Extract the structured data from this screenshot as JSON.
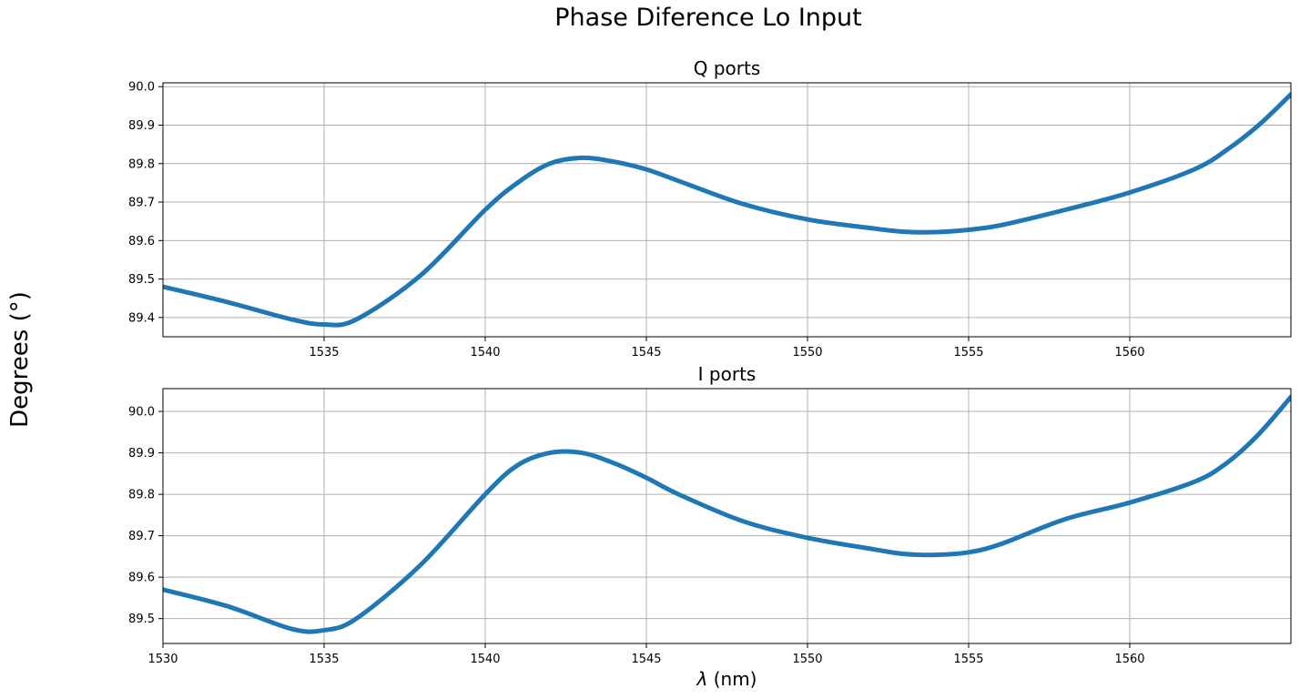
{
  "figure": {
    "suptitle": "Phase Diference Lo Input",
    "ylabel": "Degrees (°)"
  },
  "chart_data": [
    {
      "type": "line",
      "title": "Q ports",
      "xlabel": "",
      "ylabel": "",
      "xlim": [
        1530,
        1565
      ],
      "ylim": [
        89.35,
        90.01
      ],
      "xticks": [
        1535,
        1540,
        1545,
        1550,
        1555,
        1560
      ],
      "yticks": [
        89.4,
        89.5,
        89.6,
        89.7,
        89.8,
        89.9,
        90.0
      ],
      "grid": true,
      "color": "#1f77b4",
      "series": [
        {
          "x": [
            1530,
            1532,
            1534,
            1535,
            1536,
            1538,
            1540,
            1541,
            1542,
            1543,
            1544,
            1545,
            1546,
            1548,
            1550,
            1552,
            1553,
            1554,
            1555,
            1556,
            1558,
            1560,
            1562,
            1563,
            1564,
            1565
          ],
          "y": [
            89.48,
            89.44,
            89.395,
            89.382,
            89.395,
            89.51,
            89.68,
            89.75,
            89.8,
            89.815,
            89.805,
            89.785,
            89.755,
            89.695,
            89.655,
            89.632,
            89.623,
            89.622,
            89.628,
            89.64,
            89.68,
            89.725,
            89.785,
            89.835,
            89.9,
            89.98
          ]
        }
      ]
    },
    {
      "type": "line",
      "title": "I ports",
      "xlabel": "λ (nm)",
      "ylabel": "",
      "xlim": [
        1530,
        1565
      ],
      "ylim": [
        89.44,
        90.055
      ],
      "xticks": [
        1530,
        1535,
        1540,
        1545,
        1550,
        1555,
        1560
      ],
      "yticks": [
        89.5,
        89.6,
        89.7,
        89.8,
        89.9,
        90.0
      ],
      "grid": true,
      "color": "#1f77b4",
      "series": [
        {
          "x": [
            1530,
            1532,
            1534,
            1535,
            1536,
            1538,
            1540,
            1541,
            1542,
            1543,
            1544,
            1545,
            1546,
            1548,
            1550,
            1552,
            1553,
            1554,
            1555,
            1556,
            1558,
            1560,
            1562,
            1563,
            1564,
            1565
          ],
          "y": [
            89.57,
            89.53,
            89.475,
            89.472,
            89.5,
            89.63,
            89.8,
            89.87,
            89.9,
            89.9,
            89.875,
            89.84,
            89.8,
            89.735,
            89.695,
            89.668,
            89.656,
            89.654,
            89.66,
            89.68,
            89.74,
            89.78,
            89.83,
            89.875,
            89.945,
            90.035
          ]
        }
      ]
    }
  ]
}
